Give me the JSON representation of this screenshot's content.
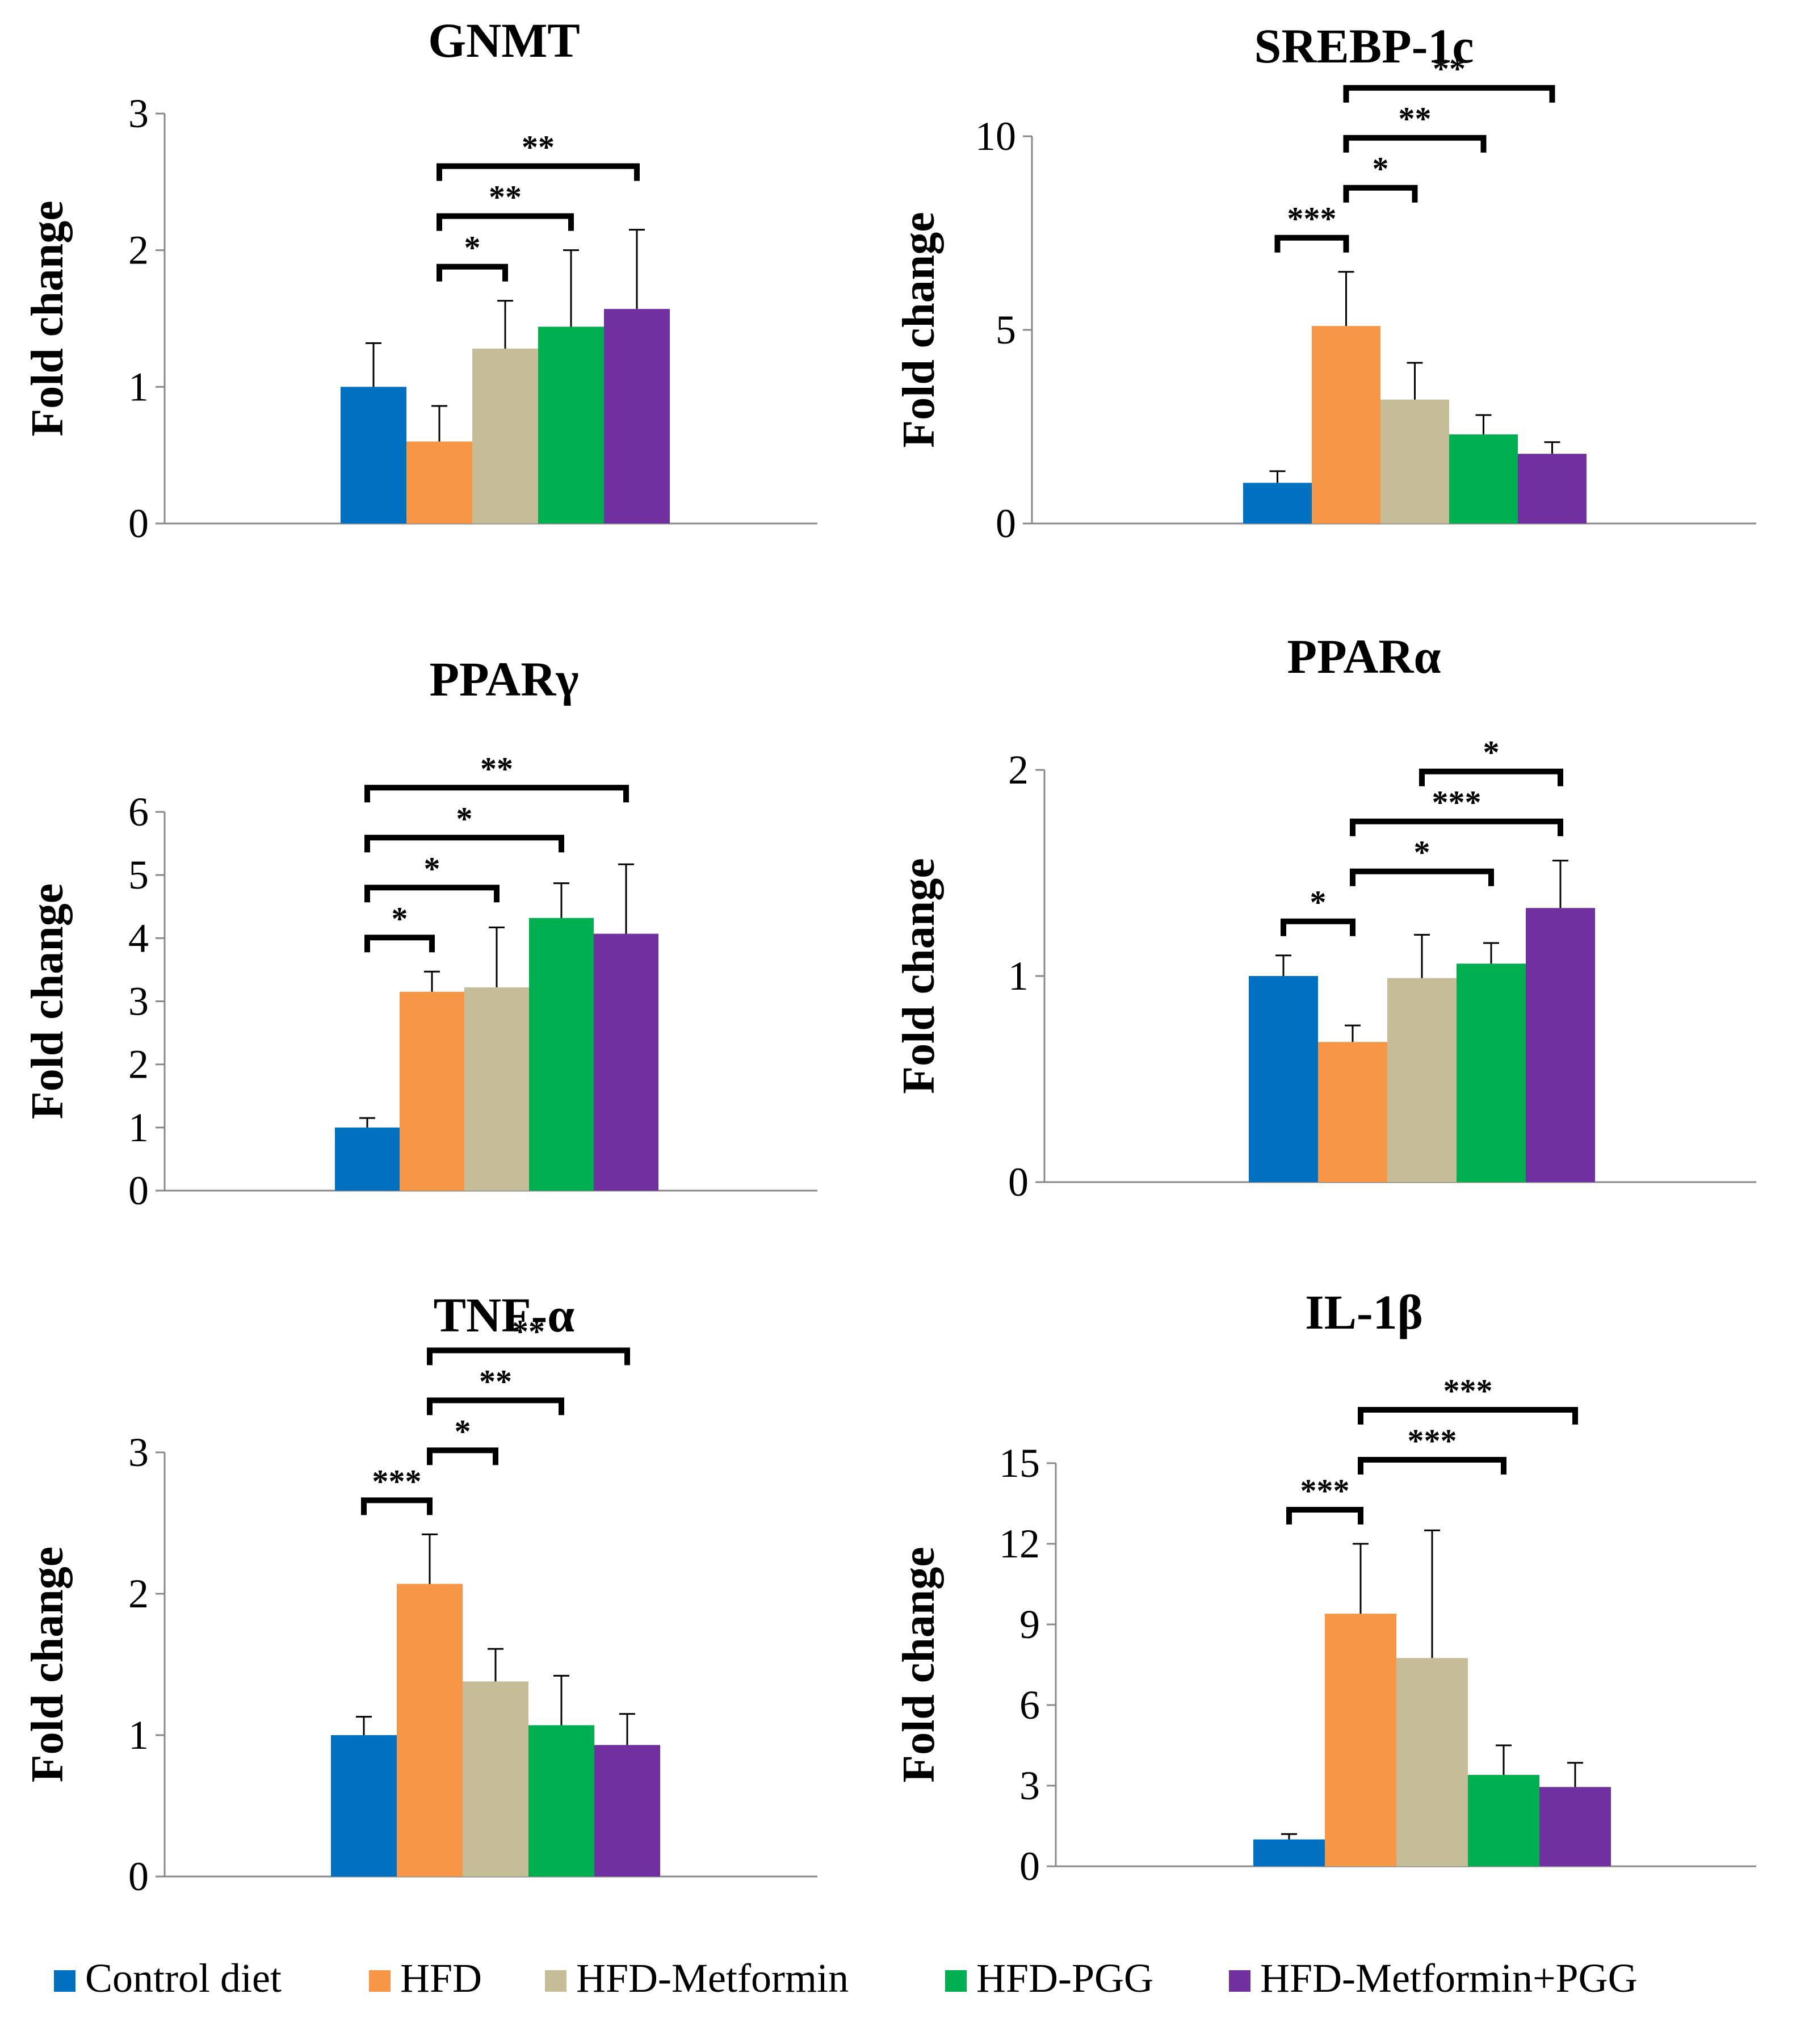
{
  "legend": [
    {
      "label": "Control diet",
      "color": "#0070C0"
    },
    {
      "label": "HFD",
      "color": "#F79646"
    },
    {
      "label": "HFD-Metformin",
      "color": "#C4BD97"
    },
    {
      "label": "HFD-PGG",
      "color": "#00B050"
    },
    {
      "label": "HFD-Metformin+PGG",
      "color": "#7030A0"
    }
  ],
  "chart_data": [
    {
      "type": "bar",
      "title": "GNMT",
      "ylabel": "Fold change",
      "ylim": [
        0,
        3
      ],
      "yticks": [
        0,
        1,
        2,
        3
      ],
      "categories": [
        "Control diet",
        "HFD",
        "HFD-Metformin",
        "HFD-PGG",
        "HFD-Metformin+PGG"
      ],
      "values": [
        1.0,
        0.6,
        1.28,
        1.44,
        1.57
      ],
      "errors": [
        0.32,
        0.26,
        0.35,
        0.56,
        0.58
      ],
      "significance": [
        {
          "from": 1,
          "to": 2,
          "label": "*"
        },
        {
          "from": 1,
          "to": 3,
          "label": "**"
        },
        {
          "from": 1,
          "to": 4,
          "label": "**"
        }
      ]
    },
    {
      "type": "bar",
      "title": "SREBP-1c",
      "ylabel": "Fold change",
      "ylim": [
        0,
        10
      ],
      "yticks": [
        0,
        5,
        10
      ],
      "categories": [
        "Control diet",
        "HFD",
        "HFD-Metformin",
        "HFD-PGG",
        "HFD-Metformin+PGG"
      ],
      "values": [
        1.05,
        5.1,
        3.2,
        2.3,
        1.8
      ],
      "errors": [
        0.3,
        1.4,
        0.95,
        0.5,
        0.3
      ],
      "significance": [
        {
          "from": 0,
          "to": 1,
          "label": "***"
        },
        {
          "from": 1,
          "to": 2,
          "label": "*"
        },
        {
          "from": 1,
          "to": 3,
          "label": "**"
        },
        {
          "from": 1,
          "to": 4,
          "label": "**"
        }
      ]
    },
    {
      "type": "bar",
      "title": "PPARγ",
      "ylabel": "Fold change",
      "ylim": [
        0,
        6
      ],
      "yticks": [
        0,
        1,
        2,
        3,
        4,
        5,
        6
      ],
      "categories": [
        "Control diet",
        "HFD",
        "HFD-Metformin",
        "HFD-PGG",
        "HFD-Metformin+PGG"
      ],
      "values": [
        1.0,
        3.15,
        3.22,
        4.32,
        4.07
      ],
      "errors": [
        0.15,
        0.32,
        0.95,
        0.55,
        1.1
      ],
      "significance": [
        {
          "from": 0,
          "to": 1,
          "label": "*"
        },
        {
          "from": 0,
          "to": 2,
          "label": "*"
        },
        {
          "from": 0,
          "to": 3,
          "label": "*"
        },
        {
          "from": 0,
          "to": 4,
          "label": "**"
        }
      ]
    },
    {
      "type": "bar",
      "title": "PPARα",
      "ylabel": "Fold change",
      "ylim": [
        0,
        2
      ],
      "yticks": [
        0,
        1,
        2
      ],
      "categories": [
        "Control diet",
        "HFD",
        "HFD-Metformin",
        "HFD-PGG",
        "HFD-Metformin+PGG"
      ],
      "values": [
        1.0,
        0.68,
        0.99,
        1.06,
        1.33
      ],
      "errors": [
        0.1,
        0.08,
        0.21,
        0.1,
        0.23
      ],
      "significance": [
        {
          "from": 0,
          "to": 1,
          "label": "*"
        },
        {
          "from": 1,
          "to": 3,
          "label": "*"
        },
        {
          "from": 1,
          "to": 4,
          "label": "***"
        },
        {
          "from": 2,
          "to": 4,
          "label": "*"
        }
      ]
    },
    {
      "type": "bar",
      "title": "TNF-α",
      "ylabel": "Fold change",
      "ylim": [
        0,
        3
      ],
      "yticks": [
        0,
        1,
        2,
        3
      ],
      "categories": [
        "Control diet",
        "HFD",
        "HFD-Metformin",
        "HFD-PGG",
        "HFD-Metformin+PGG"
      ],
      "values": [
        1.0,
        2.07,
        1.38,
        1.07,
        0.93
      ],
      "errors": [
        0.13,
        0.35,
        0.23,
        0.35,
        0.22
      ],
      "significance": [
        {
          "from": 0,
          "to": 1,
          "label": "***"
        },
        {
          "from": 1,
          "to": 2,
          "label": "*"
        },
        {
          "from": 1,
          "to": 3,
          "label": "**"
        },
        {
          "from": 1,
          "to": 4,
          "label": "**"
        }
      ]
    },
    {
      "type": "bar",
      "title": "IL-1β",
      "ylabel": "Fold change",
      "ylim": [
        0,
        15
      ],
      "yticks": [
        0,
        3,
        6,
        9,
        12,
        15
      ],
      "categories": [
        "Control diet",
        "HFD",
        "HFD-Metformin",
        "HFD-PGG",
        "HFD-Metformin+PGG"
      ],
      "values": [
        1.0,
        9.4,
        7.75,
        3.4,
        2.95
      ],
      "errors": [
        0.2,
        2.6,
        4.75,
        1.1,
        0.9
      ],
      "significance": [
        {
          "from": 0,
          "to": 1,
          "label": "***"
        },
        {
          "from": 1,
          "to": 3,
          "label": "***"
        },
        {
          "from": 1,
          "to": 4,
          "label": "***"
        }
      ]
    }
  ]
}
